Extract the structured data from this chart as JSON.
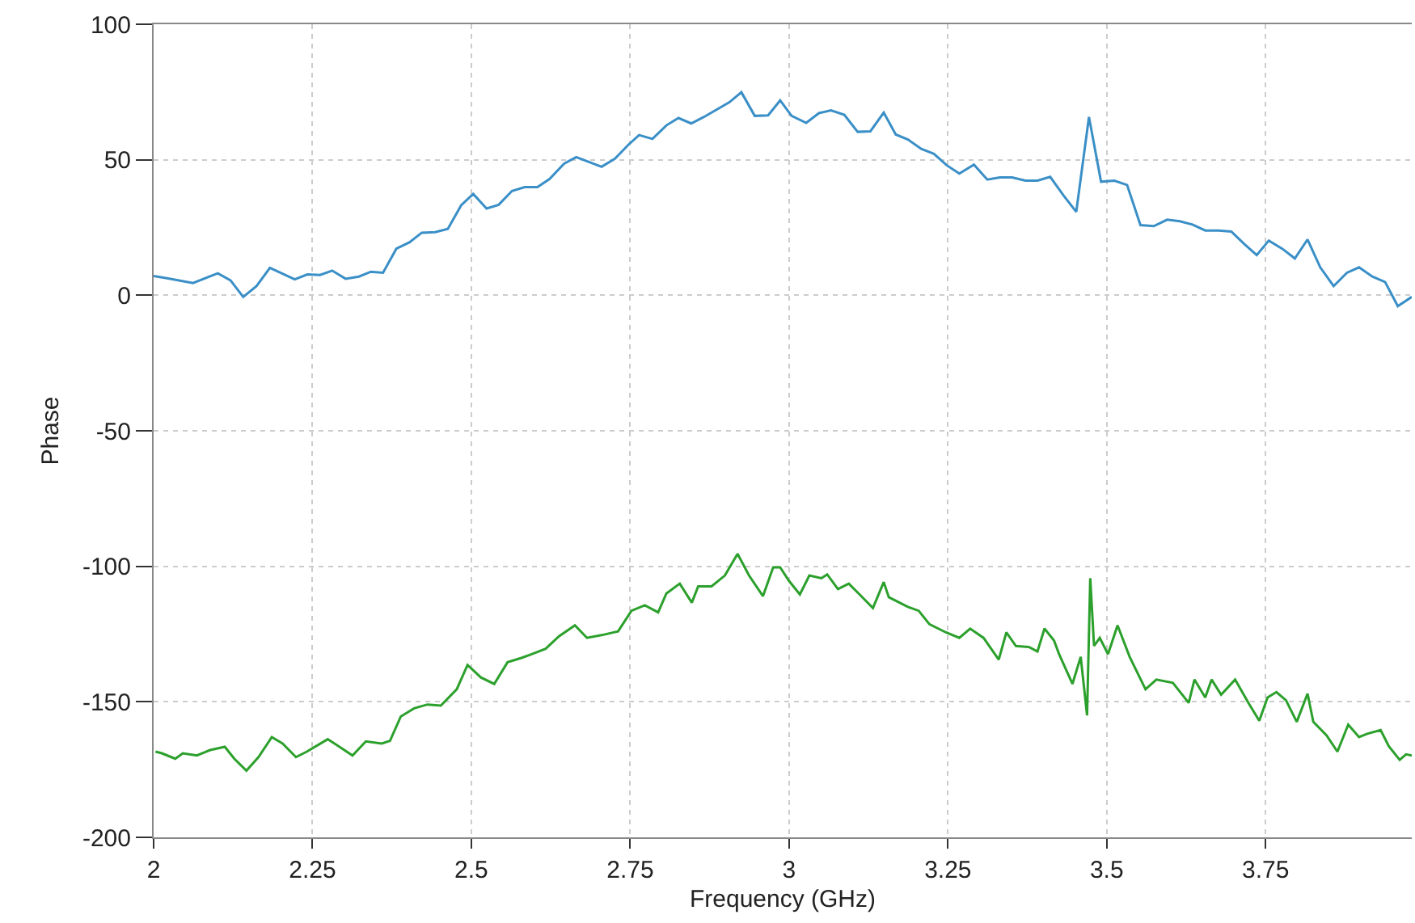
{
  "chart_data": {
    "type": "line",
    "xlabel": "Frequency (GHz)",
    "ylabel": "Phase",
    "xlim": [
      2,
      3.98
    ],
    "xticks": [
      2,
      2.25,
      2.5,
      2.75,
      3,
      3.25,
      3.5,
      3.75
    ],
    "ylim": [
      -200,
      100
    ],
    "yticks": [
      -200,
      -150,
      -100,
      -50,
      0,
      50,
      100
    ],
    "grid": true,
    "series": [
      {
        "color": "#3a8fc7",
        "x": [
          2.0,
          2.021,
          2.062,
          2.101,
          2.121,
          2.141,
          2.162,
          2.183,
          2.222,
          2.242,
          2.262,
          2.281,
          2.302,
          2.323,
          2.342,
          2.361,
          2.382,
          2.403,
          2.422,
          2.443,
          2.463,
          2.484,
          2.503,
          2.524,
          2.543,
          2.564,
          2.584,
          2.604,
          2.623,
          2.646,
          2.665,
          2.705,
          2.726,
          2.747,
          2.764,
          2.785,
          2.807,
          2.826,
          2.846,
          2.866,
          2.906,
          2.925,
          2.946,
          2.967,
          2.986,
          3.004,
          3.027,
          3.047,
          3.066,
          3.087,
          3.108,
          3.128,
          3.149,
          3.168,
          3.187,
          3.208,
          3.228,
          3.248,
          3.268,
          3.291,
          3.312,
          3.332,
          3.351,
          3.372,
          3.391,
          3.411,
          3.432,
          3.452,
          3.472,
          3.491,
          3.512,
          3.532,
          3.553,
          3.574,
          3.595,
          3.615,
          3.635,
          3.655,
          3.676,
          3.696,
          3.716,
          3.736,
          3.755,
          3.776,
          3.796,
          3.816,
          3.836,
          3.857,
          3.878,
          3.897,
          3.918,
          3.938,
          3.958,
          3.98
        ],
        "values": [
          7.1,
          6.3,
          4.5,
          8.1,
          5.5,
          -0.6,
          3.4,
          10.1,
          5.9,
          7.7,
          7.5,
          9.1,
          6.1,
          6.9,
          8.7,
          8.3,
          17.2,
          19.6,
          23.1,
          23.3,
          24.5,
          33.2,
          37.4,
          32.0,
          33.4,
          38.5,
          39.9,
          39.9,
          42.9,
          48.6,
          51.0,
          47.4,
          50.4,
          55.5,
          59.1,
          57.7,
          62.7,
          65.4,
          63.4,
          65.8,
          71.2,
          74.9,
          66.2,
          66.4,
          71.9,
          66.2,
          63.6,
          67.2,
          68.2,
          66.6,
          60.3,
          60.5,
          67.4,
          59.3,
          57.5,
          54.0,
          52.2,
          48.0,
          44.9,
          48.2,
          42.7,
          43.5,
          43.5,
          42.3,
          42.3,
          43.7,
          36.8,
          30.8,
          65.8,
          41.9,
          42.3,
          40.7,
          25.9,
          25.5,
          27.9,
          27.3,
          26.1,
          23.9,
          23.9,
          23.5,
          19.0,
          14.8,
          20.2,
          17.2,
          13.6,
          20.6,
          10.3,
          3.4,
          8.3,
          10.3,
          6.9,
          4.9,
          -4.0,
          -0.6
        ]
      },
      {
        "color": "#2ca02c",
        "x": [
          2.003,
          2.013,
          2.034,
          2.046,
          2.068,
          2.089,
          2.112,
          2.127,
          2.146,
          2.165,
          2.186,
          2.203,
          2.224,
          2.241,
          2.274,
          2.291,
          2.313,
          2.334,
          2.359,
          2.372,
          2.389,
          2.41,
          2.431,
          2.452,
          2.477,
          2.494,
          2.515,
          2.536,
          2.557,
          2.579,
          2.595,
          2.617,
          2.638,
          2.663,
          2.682,
          2.705,
          2.731,
          2.752,
          2.773,
          2.794,
          2.807,
          2.828,
          2.847,
          2.857,
          2.878,
          2.899,
          2.919,
          2.937,
          2.959,
          2.975,
          2.986,
          3.0,
          3.017,
          3.032,
          3.051,
          3.06,
          3.077,
          3.094,
          3.111,
          3.132,
          3.149,
          3.157,
          3.187,
          3.204,
          3.221,
          3.247,
          3.268,
          3.285,
          3.306,
          3.33,
          3.342,
          3.357,
          3.378,
          3.391,
          3.402,
          3.417,
          3.425,
          3.446,
          3.459,
          3.469,
          3.474,
          3.48,
          3.489,
          3.502,
          3.517,
          3.536,
          3.561,
          3.578,
          3.604,
          3.629,
          3.638,
          3.655,
          3.665,
          3.68,
          3.702,
          3.723,
          3.74,
          3.753,
          3.767,
          3.782,
          3.799,
          3.816,
          3.825,
          3.846,
          3.863,
          3.88,
          3.897,
          3.91,
          3.931,
          3.944,
          3.961,
          3.971,
          3.98
        ],
        "values": [
          -168.4,
          -169,
          -171,
          -169,
          -169.8,
          -167.8,
          -166.6,
          -171,
          -175.4,
          -170.4,
          -163,
          -165.4,
          -170.4,
          -168.4,
          -163.8,
          -166.4,
          -169.8,
          -164.6,
          -165.4,
          -164.4,
          -155.4,
          -152.4,
          -151,
          -151.4,
          -145.4,
          -136.4,
          -141,
          -143.4,
          -135.4,
          -133.8,
          -132.4,
          -130.4,
          -125.8,
          -121.8,
          -126.4,
          -125.4,
          -124,
          -116.4,
          -114.4,
          -117,
          -110,
          -106.4,
          -113.4,
          -107.4,
          -107.4,
          -103.4,
          -95.4,
          -103.4,
          -111,
          -100.4,
          -100.4,
          -105.4,
          -110.4,
          -103.4,
          -104.4,
          -103,
          -108.4,
          -106.4,
          -110.4,
          -115.4,
          -105.8,
          -111.4,
          -115,
          -116.4,
          -121.4,
          -124.4,
          -126.4,
          -123,
          -126.4,
          -134.4,
          -124.4,
          -129.4,
          -129.8,
          -131.4,
          -123,
          -127.4,
          -132.4,
          -143.4,
          -133.4,
          -155,
          -104.4,
          -129.4,
          -126.4,
          -132.4,
          -121.8,
          -133.4,
          -145.4,
          -141.8,
          -143,
          -150.4,
          -141.8,
          -148.4,
          -141.8,
          -147.4,
          -141.8,
          -150.4,
          -157,
          -148.4,
          -146.4,
          -149.4,
          -157.4,
          -147,
          -157.4,
          -162.4,
          -168.4,
          -158.4,
          -163,
          -161.8,
          -160.4,
          -166.4,
          -171.4,
          -169.4,
          -169.8
        ]
      }
    ]
  }
}
